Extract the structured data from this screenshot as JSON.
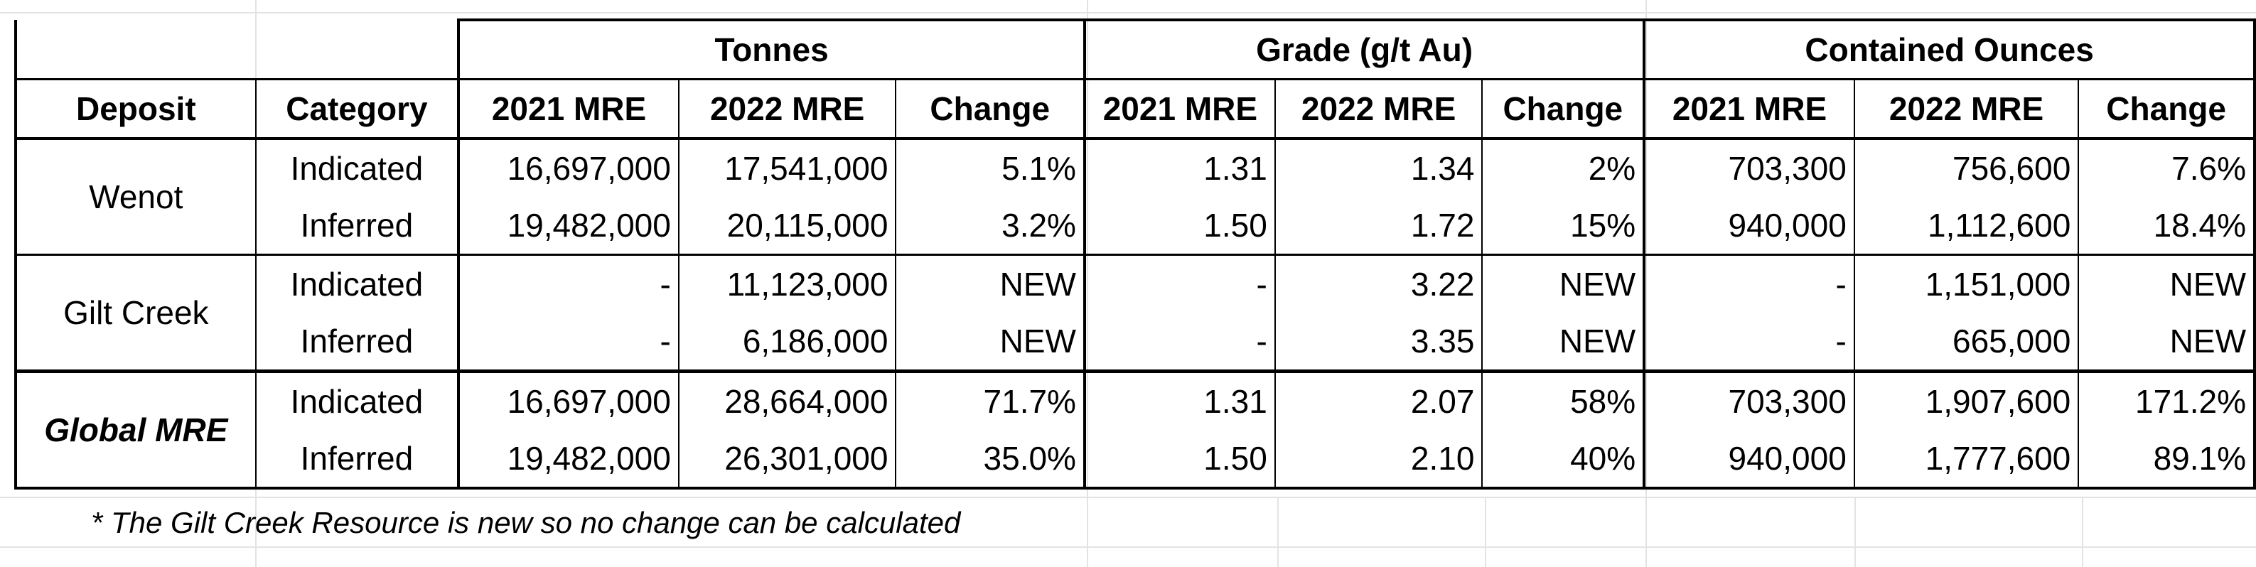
{
  "header": {
    "groups": [
      "Tonnes",
      "Grade  (g/t Au)",
      "Contained Ounces"
    ],
    "columns": [
      "Deposit",
      "Category",
      "2021 MRE",
      "2022 MRE",
      "Change",
      "2021 MRE",
      "2022 MRE",
      "Change",
      "2021 MRE",
      "2022 MRE",
      "Change"
    ]
  },
  "rows": [
    {
      "deposit": "Wenot",
      "category": "Indicated",
      "t2021": "16,697,000",
      "t2022": "17,541,000",
      "tchg": "5.1%",
      "g2021": "1.31",
      "g2022": "1.34",
      "gchg": "2%",
      "o2021": "703,300",
      "o2022": "756,600",
      "ochg": "7.6%"
    },
    {
      "deposit": "",
      "category": "Inferred",
      "t2021": "19,482,000",
      "t2022": "20,115,000",
      "tchg": "3.2%",
      "g2021": "1.50",
      "g2022": "1.72",
      "gchg": "15%",
      "o2021": "940,000",
      "o2022": "1,112,600",
      "ochg": "18.4%"
    },
    {
      "deposit": "Gilt Creek",
      "category": "Indicated",
      "t2021": "-",
      "t2022": "11,123,000",
      "tchg": "NEW",
      "g2021": "-",
      "g2022": "3.22",
      "gchg": "NEW",
      "o2021": "-",
      "o2022": "1,151,000",
      "ochg": "NEW"
    },
    {
      "deposit": "",
      "category": "Inferred",
      "t2021": "-",
      "t2022": "6,186,000",
      "tchg": "NEW",
      "g2021": "-",
      "g2022": "3.35",
      "gchg": "NEW",
      "o2021": "-",
      "o2022": "665,000",
      "ochg": "NEW"
    },
    {
      "deposit": "Global MRE",
      "category": "Indicated",
      "t2021": "16,697,000",
      "t2022": "28,664,000",
      "tchg": "71.7%",
      "g2021": "1.31",
      "g2022": "2.07",
      "gchg": "58%",
      "o2021": "703,300",
      "o2022": "1,907,600",
      "ochg": "171.2%"
    },
    {
      "deposit": "",
      "category": "Inferred",
      "t2021": "19,482,000",
      "t2022": "26,301,000",
      "tchg": "35.0%",
      "g2021": "1.50",
      "g2022": "2.10",
      "gchg": "40%",
      "o2021": "940,000",
      "o2022": "1,777,600",
      "ochg": "89.1%"
    }
  ],
  "footnote": "* The Gilt Creek Resource is new so no change can be calculated"
}
